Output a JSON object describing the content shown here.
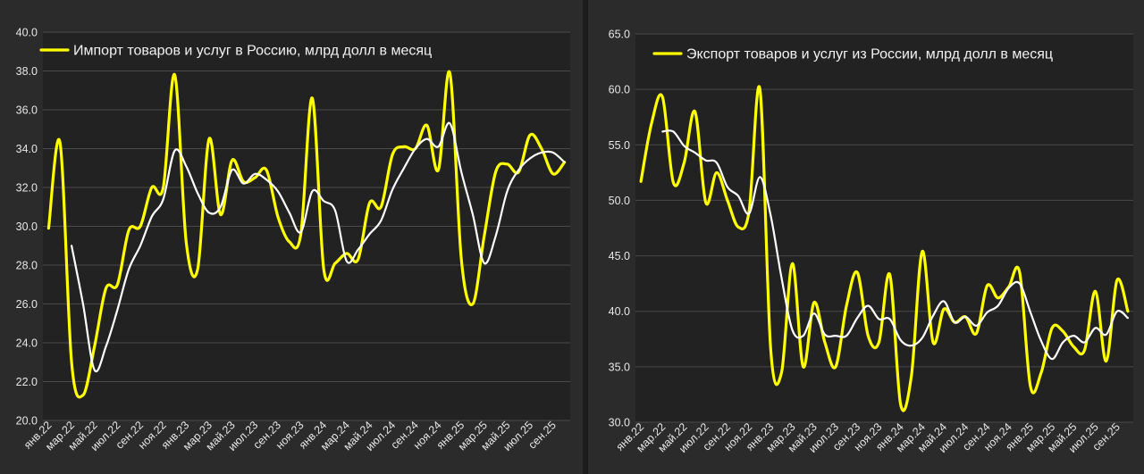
{
  "chart_data": [
    {
      "type": "line",
      "series": [
        {
          "name": "Импорт товаров и услуг в Россию, млрд долл в месяц",
          "color": "#ffff00",
          "values": [
            29.9,
            34.3,
            23.0,
            21.3,
            23.8,
            26.8,
            27.0,
            29.8,
            30.0,
            32.0,
            32.0,
            37.8,
            29.2,
            27.8,
            34.5,
            30.6,
            33.4,
            32.3,
            32.5,
            32.9,
            30.5,
            29.2,
            29.6,
            36.6,
            27.8,
            28.1,
            28.6,
            28.3,
            31.2,
            31.0,
            33.7,
            34.1,
            34.0,
            35.2,
            32.9,
            37.9,
            28.3,
            26.0,
            29.5,
            32.8,
            33.2,
            32.8,
            34.7,
            34.0,
            32.7,
            33.3
          ]
        },
        {
          "name": "",
          "color": "#ffffff",
          "values": [
            null,
            null,
            29.0,
            26.0,
            22.6,
            23.8,
            25.7,
            27.8,
            29.0,
            30.5,
            31.4,
            33.9,
            33.1,
            31.7,
            30.7,
            31.0,
            32.9,
            32.2,
            32.7,
            32.4,
            31.8,
            30.7,
            29.7,
            31.8,
            31.3,
            30.8,
            28.2,
            28.8,
            29.6,
            30.3,
            31.9,
            33.0,
            34.0,
            34.5,
            34.1,
            35.3,
            32.8,
            30.6,
            28.1,
            29.5,
            31.8,
            32.9,
            33.5,
            33.8,
            33.8,
            33.3
          ]
        }
      ],
      "x_labels": [
        "янв.22",
        "мар.22",
        "май.22",
        "июл.22",
        "сен.22",
        "ноя.22",
        "янв.23",
        "мар.23",
        "май.23",
        "июл.23",
        "сен.23",
        "ноя.23",
        "янв.24",
        "мар.24",
        "май.24",
        "июл.24",
        "сен.24",
        "ноя.24",
        "янв.25",
        "мар.25",
        "май.25",
        "июл.25",
        "сен.25"
      ],
      "ylim": [
        20,
        40
      ],
      "y_ticks": [
        "20.0",
        "22.0",
        "24.0",
        "26.0",
        "28.0",
        "30.0",
        "32.0",
        "34.0",
        "36.0",
        "38.0",
        "40.0"
      ],
      "xlabel": "",
      "ylabel": "",
      "grid": true,
      "legend": "top-left"
    },
    {
      "type": "line",
      "series": [
        {
          "name": "Экспорт товаров и услуг из России, млрд долл в месяц",
          "color": "#ffff00",
          "values": [
            51.7,
            57.0,
            59.3,
            51.6,
            53.4,
            58.0,
            49.8,
            52.5,
            50.0,
            47.6,
            49.0,
            60.0,
            36.5,
            34.5,
            44.3,
            35.0,
            40.8,
            37.2,
            35.0,
            40.5,
            43.5,
            37.8,
            37.2,
            43.3,
            31.6,
            34.2,
            45.4,
            37.2,
            40.2,
            39.0,
            39.5,
            38.0,
            42.3,
            41.2,
            42.2,
            43.5,
            33.2,
            34.5,
            38.5,
            38.2,
            36.8,
            36.5,
            41.8,
            35.5,
            42.8,
            40.0
          ]
        },
        {
          "name": "",
          "color": "#ffffff",
          "values": [
            null,
            null,
            56.2,
            56.2,
            54.9,
            54.3,
            53.6,
            53.4,
            51.2,
            50.4,
            48.8,
            52.1,
            48.6,
            43.0,
            38.3,
            37.8,
            39.8,
            37.9,
            37.8,
            37.8,
            39.4,
            40.5,
            39.3,
            39.3,
            37.4,
            36.9,
            37.6,
            39.6,
            40.9,
            39.0,
            39.5,
            38.7,
            39.9,
            40.5,
            42.1,
            42.5,
            39.9,
            37.3,
            35.7,
            37.2,
            37.8,
            37.2,
            38.5,
            37.9,
            40.0,
            39.4
          ]
        }
      ],
      "x_labels": [
        "янв.22",
        "мар.22",
        "май.22",
        "июл.22",
        "сен.22",
        "ноя.22",
        "янв.23",
        "мар.23",
        "май.23",
        "июл.23",
        "сен.23",
        "ноя.23",
        "янв.24",
        "мар.24",
        "май.24",
        "июл.24",
        "сен.24",
        "ноя.24",
        "янв.25",
        "мар.25",
        "май.25",
        "июл.25",
        "сен.25"
      ],
      "ylim": [
        30,
        65
      ],
      "y_ticks": [
        "30.0",
        "35.0",
        "40.0",
        "45.0",
        "50.0",
        "55.0",
        "60.0",
        "65.0"
      ],
      "xlabel": "",
      "ylabel": "",
      "grid": true,
      "legend": "top-left"
    }
  ]
}
